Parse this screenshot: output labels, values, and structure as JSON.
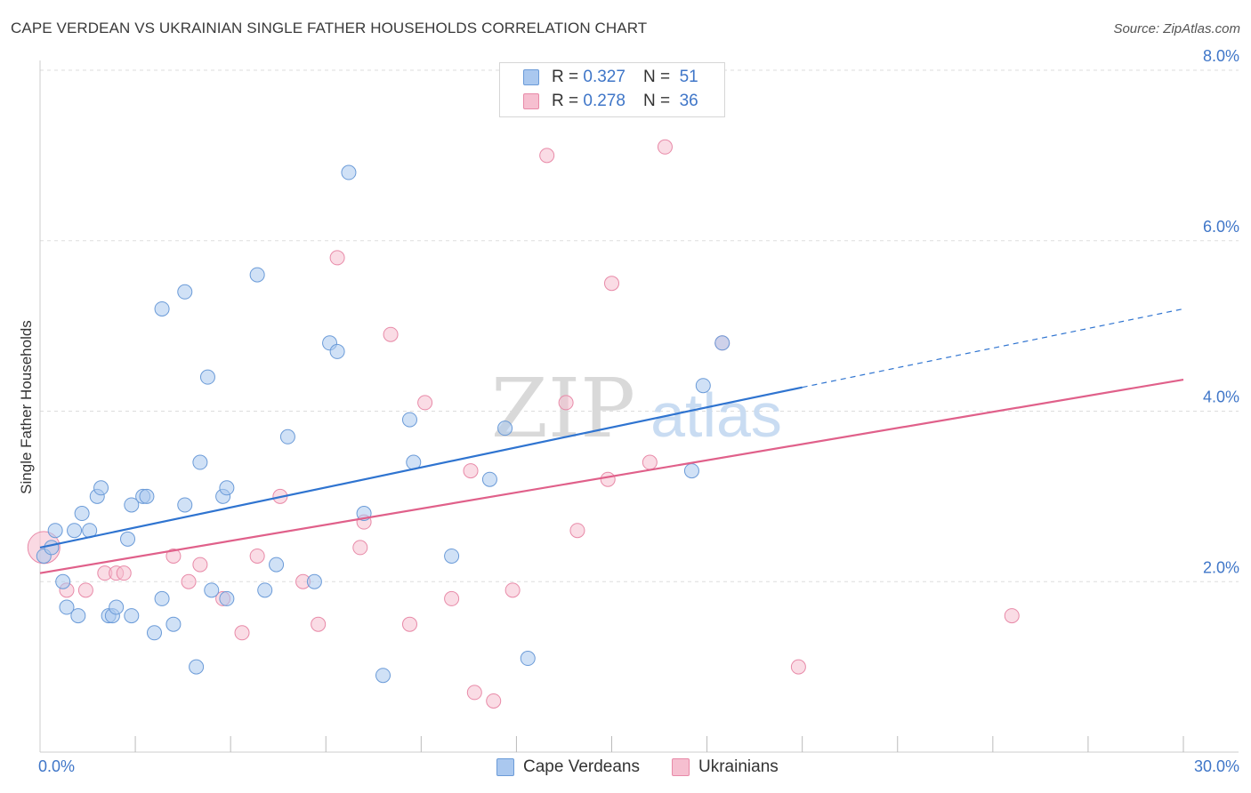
{
  "title": "CAPE VERDEAN VS UKRAINIAN SINGLE FATHER HOUSEHOLDS CORRELATION CHART",
  "source": "Source: ZipAtlas.com",
  "watermark": {
    "zip": "ZIP",
    "atlas": "atlas"
  },
  "legend_top": [
    {
      "r_label": "R =",
      "r_value": "0.327",
      "n_label": "N =",
      "n_value": "51"
    },
    {
      "r_label": "R =",
      "r_value": "0.278",
      "n_label": "N =",
      "n_value": "36"
    }
  ],
  "legend_bottom": [
    "Cape Verdeans",
    "Ukrainians"
  ],
  "colors": {
    "blue_fill": "#aac8ef",
    "blue_stroke": "#6b9bd8",
    "blue_line": "#2f74d0",
    "pink_fill": "#f6bfd0",
    "pink_stroke": "#e88aa8",
    "pink_line": "#e0608a",
    "axis_text": "#3f76c8",
    "grid": "#dddddd"
  },
  "chart_data": {
    "type": "scatter",
    "title": "CAPE VERDEAN VS UKRAINIAN SINGLE FATHER HOUSEHOLDS CORRELATION CHART",
    "xlabel": "",
    "ylabel": "Single Father Households",
    "xlim": [
      0,
      30
    ],
    "ylim": [
      0,
      8
    ],
    "x_tick_labels": [
      "0.0%",
      "30.0%"
    ],
    "y_ticks": [
      2,
      4,
      6,
      8
    ],
    "y_tick_labels": [
      "2.0%",
      "4.0%",
      "6.0%",
      "8.0%"
    ],
    "grid": true,
    "legend_position": "top-center",
    "series": [
      {
        "name": "Cape Verdeans",
        "R": 0.327,
        "N": 51,
        "trend": {
          "x0": 0,
          "y0": 2.4,
          "x1": 20,
          "y1": 4.28,
          "dashed_to_x": 30,
          "dashed_to_y": 5.2
        },
        "points": [
          [
            0.1,
            2.3
          ],
          [
            0.3,
            2.4
          ],
          [
            0.4,
            2.6
          ],
          [
            0.6,
            2.0
          ],
          [
            0.7,
            1.7
          ],
          [
            0.9,
            2.6
          ],
          [
            1.0,
            1.6
          ],
          [
            1.1,
            2.8
          ],
          [
            1.3,
            2.6
          ],
          [
            1.5,
            3.0
          ],
          [
            1.6,
            3.1
          ],
          [
            1.8,
            1.6
          ],
          [
            1.9,
            1.6
          ],
          [
            2.0,
            1.7
          ],
          [
            2.3,
            2.5
          ],
          [
            2.4,
            2.9
          ],
          [
            2.4,
            1.6
          ],
          [
            2.7,
            3.0
          ],
          [
            2.8,
            3.0
          ],
          [
            3.0,
            1.4
          ],
          [
            3.2,
            5.2
          ],
          [
            3.2,
            1.8
          ],
          [
            3.5,
            1.5
          ],
          [
            3.8,
            2.9
          ],
          [
            3.8,
            5.4
          ],
          [
            4.1,
            1.0
          ],
          [
            4.2,
            3.4
          ],
          [
            4.4,
            4.4
          ],
          [
            4.5,
            1.9
          ],
          [
            4.8,
            3.0
          ],
          [
            4.9,
            3.1
          ],
          [
            4.9,
            1.8
          ],
          [
            5.7,
            5.6
          ],
          [
            5.9,
            1.9
          ],
          [
            6.2,
            2.2
          ],
          [
            6.5,
            3.7
          ],
          [
            7.2,
            2.0
          ],
          [
            7.6,
            4.8
          ],
          [
            7.8,
            4.7
          ],
          [
            8.1,
            6.8
          ],
          [
            8.5,
            2.8
          ],
          [
            9.0,
            0.9
          ],
          [
            9.7,
            3.9
          ],
          [
            9.8,
            3.4
          ],
          [
            10.8,
            2.3
          ],
          [
            11.8,
            3.2
          ],
          [
            12.2,
            3.8
          ],
          [
            12.8,
            1.1
          ],
          [
            17.1,
            3.3
          ],
          [
            17.4,
            4.3
          ],
          [
            17.9,
            4.8
          ]
        ]
      },
      {
        "name": "Ukrainians",
        "R": 0.278,
        "N": 36,
        "trend": {
          "x0": 0,
          "y0": 2.1,
          "x1": 30,
          "y1": 4.37
        },
        "points": [
          [
            0.1,
            2.4
          ],
          [
            0.7,
            1.9
          ],
          [
            1.2,
            1.9
          ],
          [
            1.7,
            2.1
          ],
          [
            2.0,
            2.1
          ],
          [
            2.2,
            2.1
          ],
          [
            3.5,
            2.3
          ],
          [
            3.9,
            2.0
          ],
          [
            4.2,
            2.2
          ],
          [
            4.8,
            1.8
          ],
          [
            5.3,
            1.4
          ],
          [
            5.7,
            2.3
          ],
          [
            6.3,
            3.0
          ],
          [
            6.9,
            2.0
          ],
          [
            7.3,
            1.5
          ],
          [
            7.8,
            5.8
          ],
          [
            8.4,
            2.4
          ],
          [
            8.5,
            2.7
          ],
          [
            9.2,
            4.9
          ],
          [
            9.7,
            1.5
          ],
          [
            10.1,
            4.1
          ],
          [
            10.8,
            1.8
          ],
          [
            11.3,
            3.3
          ],
          [
            11.4,
            0.7
          ],
          [
            11.9,
            0.6
          ],
          [
            12.4,
            1.9
          ],
          [
            13.3,
            7.0
          ],
          [
            13.8,
            4.1
          ],
          [
            14.1,
            2.6
          ],
          [
            14.9,
            3.2
          ],
          [
            15.0,
            5.5
          ],
          [
            16.0,
            3.4
          ],
          [
            16.4,
            7.1
          ],
          [
            17.9,
            4.8
          ],
          [
            19.9,
            1.0
          ],
          [
            25.5,
            1.6
          ]
        ]
      }
    ]
  }
}
